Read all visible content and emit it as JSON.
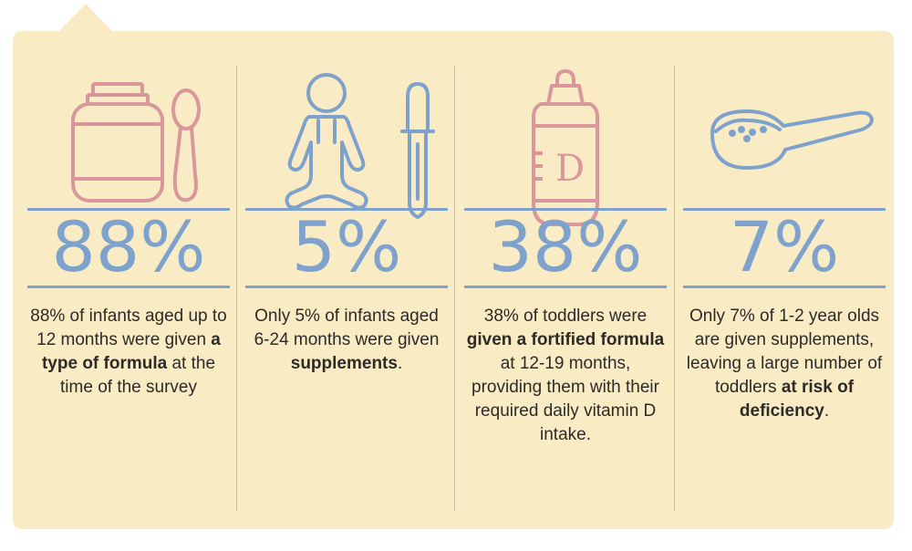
{
  "colors": {
    "background": "#f9ecc4",
    "accent_blue": "#7fa2cc",
    "accent_pink": "#d9979b",
    "text": "#2d2a27"
  },
  "stats": [
    {
      "value": "88%",
      "icons": [
        "formula-tin-icon",
        "spoon-icon"
      ],
      "desc_a": "88% of infants aged up to 12 months were given ",
      "desc_bold": "a type of formula",
      "desc_b": " at the time of the survey"
    },
    {
      "value": "5%",
      "icons": [
        "baby-icon",
        "dropper-icon"
      ],
      "desc_a": "Only 5% of infants aged 6-24 months were given ",
      "desc_bold": "supplements",
      "desc_b": "."
    },
    {
      "value": "38%",
      "icons": [
        "fortified-bottle-icon"
      ],
      "icon_text": "D",
      "desc_a": "38% of toddlers were ",
      "desc_bold": "given a fortified formula",
      "desc_b": " at 12-19 months, providing them with their required daily vitamin D intake."
    },
    {
      "value": "7%",
      "icons": [
        "powder-scoop-icon"
      ],
      "desc_a": "Only 7% of 1-2 year olds are given supplements, leaving a large number of toddlers ",
      "desc_bold": "at risk of deficiency",
      "desc_b": "."
    }
  ]
}
